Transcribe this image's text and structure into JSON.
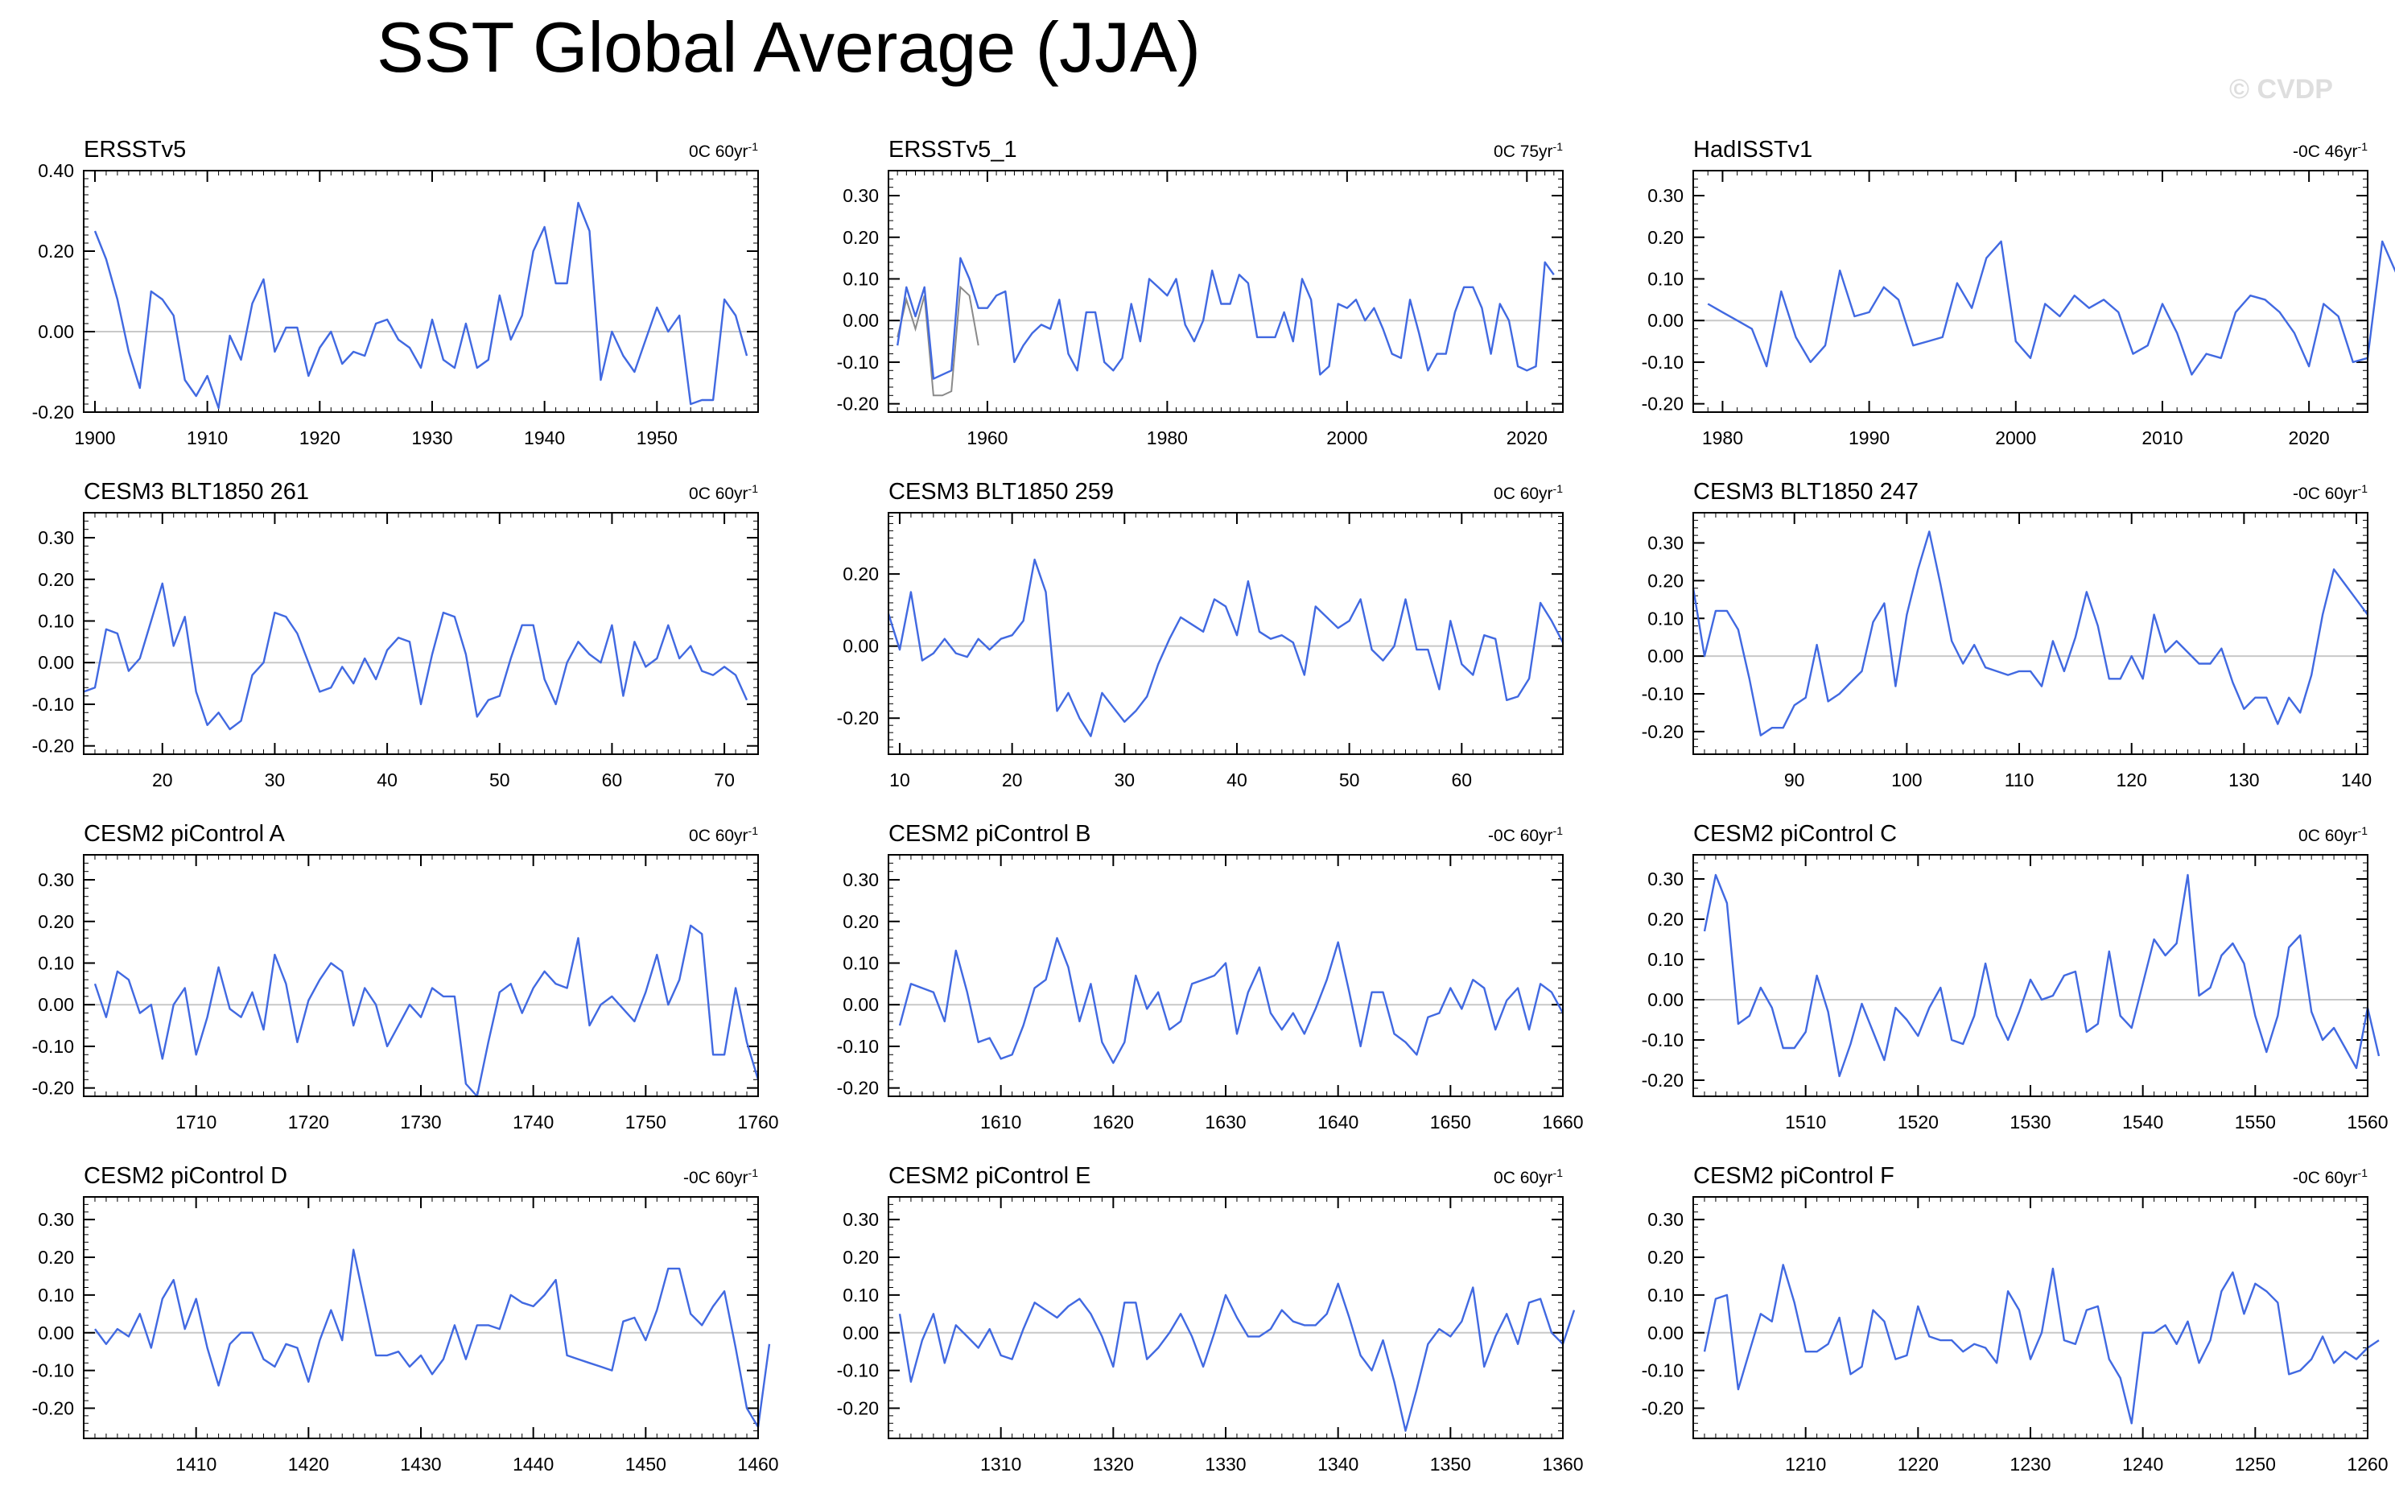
{
  "title": "SST Global Average (JJA)",
  "watermark": "© CVDP",
  "colors": {
    "line": "#4169e1",
    "obs_unsmoothed": "#8a8a8a",
    "zero_line": "#c8c8c8",
    "axis": "#000000"
  },
  "chart_data": [
    {
      "type": "line",
      "title": "ERSSTv5",
      "trend": "0C 60yr",
      "trend_unit": "-1",
      "x_start": 1900,
      "xlim": [
        1899,
        1959
      ],
      "ylim": [
        -0.2,
        0.4
      ],
      "xticks": [
        1900,
        1910,
        1920,
        1930,
        1940,
        1950
      ],
      "yticks": [
        "-0.20",
        "0.00",
        "0.20",
        "0.40"
      ],
      "values": [
        0.25,
        0.18,
        0.08,
        -0.05,
        -0.14,
        0.1,
        0.08,
        0.04,
        -0.12,
        -0.16,
        -0.11,
        -0.19,
        -0.01,
        -0.07,
        0.07,
        0.13,
        -0.05,
        0.01,
        0.01,
        -0.11,
        -0.04,
        0.0,
        -0.08,
        -0.05,
        -0.06,
        0.02,
        0.03,
        -0.02,
        -0.04,
        -0.09,
        0.03,
        -0.07,
        -0.09,
        0.02,
        -0.09,
        -0.07,
        0.09,
        -0.02,
        0.04,
        0.2,
        0.26,
        0.12,
        0.12,
        0.32,
        0.25,
        -0.12,
        0.0,
        -0.06,
        -0.1,
        -0.02,
        0.06,
        0.0,
        0.04,
        -0.18,
        -0.17,
        -0.17,
        0.08,
        0.04,
        -0.06
      ]
    },
    {
      "type": "line",
      "title": "ERSSTv5_1",
      "trend": "0C 75yr",
      "trend_unit": "-1",
      "x_start": 1950,
      "xlim": [
        1949,
        2024
      ],
      "ylim": [
        -0.22,
        0.36
      ],
      "xticks": [
        1960,
        1980,
        2000,
        2020
      ],
      "yticks": [
        "-0.20",
        "-0.10",
        "0.00",
        "0.10",
        "0.20",
        "0.30"
      ],
      "values": [
        -0.06,
        0.08,
        0.01,
        0.08,
        -0.14,
        -0.13,
        -0.12,
        0.15,
        0.1,
        0.03,
        0.03,
        0.06,
        0.07,
        -0.1,
        -0.06,
        -0.03,
        -0.01,
        -0.02,
        0.05,
        -0.08,
        -0.12,
        0.02,
        0.02,
        -0.1,
        -0.12,
        -0.09,
        0.04,
        -0.05,
        0.1,
        0.08,
        0.06,
        0.1,
        -0.01,
        -0.05,
        0.0,
        0.12,
        0.04,
        0.04,
        0.11,
        0.09,
        -0.04,
        -0.04,
        -0.04,
        0.02,
        -0.05,
        0.1,
        0.05,
        -0.13,
        -0.11,
        0.04,
        0.03,
        0.05,
        0.0,
        0.03,
        -0.02,
        -0.08,
        -0.09,
        0.05,
        -0.03,
        -0.12,
        -0.08,
        -0.08,
        0.02,
        0.08,
        0.08,
        0.03,
        -0.08,
        0.04,
        0.0,
        -0.11,
        -0.12,
        -0.11,
        0.14,
        0.11
      ],
      "unsmoothed": [
        -0.04,
        0.05,
        -0.02,
        0.06,
        -0.18,
        -0.18,
        -0.17,
        0.08,
        0.06,
        -0.06
      ]
    },
    {
      "type": "line",
      "title": "HadISSTv1",
      "trend": "-0C 46yr",
      "trend_unit": "-1",
      "x_start": 1979,
      "xlim": [
        1978,
        2024
      ],
      "ylim": [
        -0.22,
        0.36
      ],
      "xticks": [
        1980,
        1990,
        2000,
        2010,
        2020
      ],
      "yticks": [
        "-0.20",
        "-0.10",
        "0.00",
        "0.10",
        "0.20",
        "0.30"
      ],
      "values": [
        0.04,
        0.02,
        0.0,
        -0.02,
        -0.11,
        0.07,
        -0.04,
        -0.1,
        -0.06,
        0.12,
        0.01,
        0.02,
        0.08,
        0.05,
        -0.06,
        -0.05,
        -0.04,
        0.09,
        0.03,
        0.15,
        0.19,
        -0.05,
        -0.09,
        0.04,
        0.01,
        0.06,
        0.03,
        0.05,
        0.02,
        -0.08,
        -0.06,
        0.04,
        -0.03,
        -0.13,
        -0.08,
        -0.09,
        0.02,
        0.06,
        0.05,
        0.02,
        -0.03,
        -0.11,
        0.04,
        0.01,
        -0.1,
        -0.09,
        0.19,
        0.11
      ]
    },
    {
      "type": "line",
      "title": "CESM3 BLT1850 261",
      "trend": "0C 60yr",
      "trend_unit": "-1",
      "x_start": 13,
      "xlim": [
        13,
        73
      ],
      "ylim": [
        -0.22,
        0.36
      ],
      "xticks": [
        20,
        30,
        40,
        50,
        60,
        70
      ],
      "yticks": [
        "-0.20",
        "-0.10",
        "0.00",
        "0.10",
        "0.20",
        "0.30"
      ],
      "values": [
        -0.07,
        -0.06,
        0.08,
        0.07,
        -0.02,
        0.01,
        0.1,
        0.19,
        0.04,
        0.11,
        -0.07,
        -0.15,
        -0.12,
        -0.16,
        -0.14,
        -0.03,
        0.0,
        0.12,
        0.11,
        0.07,
        0.0,
        -0.07,
        -0.06,
        -0.01,
        -0.05,
        0.01,
        -0.04,
        0.03,
        0.06,
        0.05,
        -0.1,
        0.02,
        0.12,
        0.11,
        0.02,
        -0.13,
        -0.09,
        -0.08,
        0.01,
        0.09,
        0.09,
        -0.04,
        -0.1,
        0.0,
        0.05,
        0.02,
        0.0,
        0.09,
        -0.08,
        0.05,
        -0.01,
        0.01,
        0.09,
        0.01,
        0.04,
        -0.02,
        -0.03,
        -0.01,
        -0.03,
        -0.09
      ]
    },
    {
      "type": "line",
      "title": "CESM3 BLT1850 259",
      "trend": "0C 60yr",
      "trend_unit": "-1",
      "x_start": 9,
      "xlim": [
        9,
        69
      ],
      "ylim": [
        -0.3,
        0.37
      ],
      "xticks": [
        10,
        20,
        30,
        40,
        50,
        60
      ],
      "yticks": [
        "-0.20",
        "0.00",
        "0.20"
      ],
      "values": [
        0.09,
        -0.01,
        0.15,
        -0.04,
        -0.02,
        0.02,
        -0.02,
        -0.03,
        0.02,
        -0.01,
        0.02,
        0.03,
        0.07,
        0.24,
        0.15,
        -0.18,
        -0.13,
        -0.2,
        -0.25,
        -0.13,
        -0.17,
        -0.21,
        -0.18,
        -0.14,
        -0.05,
        0.02,
        0.08,
        0.06,
        0.04,
        0.13,
        0.11,
        0.03,
        0.18,
        0.04,
        0.02,
        0.03,
        0.01,
        -0.08,
        0.11,
        0.08,
        0.05,
        0.07,
        0.13,
        -0.01,
        -0.04,
        0.0,
        0.13,
        -0.01,
        -0.01,
        -0.12,
        0.07,
        -0.05,
        -0.08,
        0.03,
        0.02,
        -0.15,
        -0.14,
        -0.09,
        0.12,
        0.07,
        0.01
      ]
    },
    {
      "type": "line",
      "title": "CESM3 BLT1850 247",
      "trend": "-0C 60yr",
      "trend_unit": "-1",
      "x_start": 81,
      "xlim": [
        81,
        141
      ],
      "ylim": [
        -0.26,
        0.38
      ],
      "xticks": [
        90,
        100,
        110,
        120,
        130,
        140
      ],
      "yticks": [
        "-0.20",
        "-0.10",
        "0.00",
        "0.10",
        "0.20",
        "0.30"
      ],
      "values": [
        0.18,
        0.0,
        0.12,
        0.12,
        0.07,
        -0.06,
        -0.21,
        -0.19,
        -0.19,
        -0.13,
        -0.11,
        0.03,
        -0.12,
        -0.1,
        -0.07,
        -0.04,
        0.09,
        0.14,
        -0.08,
        0.11,
        0.23,
        0.33,
        0.19,
        0.04,
        -0.02,
        0.03,
        -0.03,
        -0.04,
        -0.05,
        -0.04,
        -0.04,
        -0.08,
        0.04,
        -0.04,
        0.05,
        0.17,
        0.08,
        -0.06,
        -0.06,
        0.0,
        -0.06,
        0.11,
        0.01,
        0.04,
        0.01,
        -0.02,
        -0.02,
        0.02,
        -0.07,
        -0.14,
        -0.11,
        -0.11,
        -0.18,
        -0.11,
        -0.15,
        -0.05,
        0.11,
        0.23,
        0.19,
        0.15,
        0.11
      ]
    },
    {
      "type": "line",
      "title": "CESM2 piControl A",
      "trend": "0C 60yr",
      "trend_unit": "-1",
      "x_start": 1701,
      "xlim": [
        1700,
        1760
      ],
      "ylim": [
        -0.22,
        0.36
      ],
      "xticks": [
        1710,
        1720,
        1730,
        1740,
        1750,
        1760
      ],
      "yticks": [
        "-0.20",
        "-0.10",
        "0.00",
        "0.10",
        "0.20",
        "0.30"
      ],
      "values": [
        0.05,
        -0.03,
        0.08,
        0.06,
        -0.02,
        0.0,
        -0.13,
        0.0,
        0.04,
        -0.12,
        -0.03,
        0.09,
        -0.01,
        -0.03,
        0.03,
        -0.06,
        0.12,
        0.05,
        -0.09,
        0.01,
        0.06,
        0.1,
        0.08,
        -0.05,
        0.04,
        0.0,
        -0.1,
        -0.05,
        0.0,
        -0.03,
        0.04,
        0.02,
        0.02,
        -0.19,
        -0.22,
        -0.09,
        0.03,
        0.05,
        -0.02,
        0.04,
        0.08,
        0.05,
        0.04,
        0.16,
        -0.05,
        0.0,
        0.02,
        -0.01,
        -0.04,
        0.03,
        0.12,
        0.0,
        0.06,
        0.19,
        0.17,
        -0.12,
        -0.12,
        0.04,
        -0.09,
        -0.18
      ]
    },
    {
      "type": "line",
      "title": "CESM2 piControl B",
      "trend": "-0C 60yr",
      "trend_unit": "-1",
      "x_start": 1601,
      "xlim": [
        1600,
        1660
      ],
      "ylim": [
        -0.22,
        0.36
      ],
      "xticks": [
        1610,
        1620,
        1630,
        1640,
        1650,
        1660
      ],
      "yticks": [
        "-0.20",
        "-0.10",
        "0.00",
        "0.10",
        "0.20",
        "0.30"
      ],
      "values": [
        -0.05,
        0.05,
        0.04,
        0.03,
        -0.04,
        0.13,
        0.03,
        -0.09,
        -0.08,
        -0.13,
        -0.12,
        -0.05,
        0.04,
        0.06,
        0.16,
        0.09,
        -0.04,
        0.05,
        -0.09,
        -0.14,
        -0.09,
        0.07,
        -0.01,
        0.03,
        -0.06,
        -0.04,
        0.05,
        0.06,
        0.07,
        0.1,
        -0.07,
        0.03,
        0.09,
        -0.02,
        -0.06,
        -0.02,
        -0.07,
        -0.01,
        0.06,
        0.15,
        0.03,
        -0.1,
        0.03,
        0.03,
        -0.07,
        -0.09,
        -0.12,
        -0.03,
        -0.02,
        0.04,
        -0.01,
        0.06,
        0.04,
        -0.06,
        0.01,
        0.04,
        -0.06,
        0.05,
        0.03,
        -0.02
      ]
    },
    {
      "type": "line",
      "title": "CESM2 piControl C",
      "trend": "0C 60yr",
      "trend_unit": "-1",
      "x_start": 1501,
      "xlim": [
        1500,
        1560
      ],
      "ylim": [
        -0.24,
        0.36
      ],
      "xticks": [
        1510,
        1520,
        1530,
        1540,
        1550,
        1560
      ],
      "yticks": [
        "-0.20",
        "-0.10",
        "0.00",
        "0.10",
        "0.20",
        "0.30"
      ],
      "values": [
        0.17,
        0.31,
        0.24,
        -0.06,
        -0.04,
        0.03,
        -0.02,
        -0.12,
        -0.12,
        -0.08,
        0.06,
        -0.03,
        -0.19,
        -0.11,
        -0.01,
        -0.08,
        -0.15,
        -0.02,
        -0.05,
        -0.09,
        -0.02,
        0.03,
        -0.1,
        -0.11,
        -0.04,
        0.09,
        -0.04,
        -0.1,
        -0.03,
        0.05,
        0.0,
        0.01,
        0.06,
        0.07,
        -0.08,
        -0.06,
        0.12,
        -0.04,
        -0.07,
        0.04,
        0.15,
        0.11,
        0.14,
        0.31,
        0.01,
        0.03,
        0.11,
        0.14,
        0.09,
        -0.04,
        -0.13,
        -0.04,
        0.13,
        0.16,
        -0.03,
        -0.1,
        -0.07,
        -0.12,
        -0.17,
        -0.02,
        -0.14
      ]
    },
    {
      "type": "line",
      "title": "CESM2 piControl D",
      "trend": "-0C 60yr",
      "trend_unit": "-1",
      "x_start": 1401,
      "xlim": [
        1400,
        1460
      ],
      "ylim": [
        -0.28,
        0.36
      ],
      "xticks": [
        1410,
        1420,
        1430,
        1440,
        1450,
        1460
      ],
      "yticks": [
        "-0.20",
        "-0.10",
        "0.00",
        "0.10",
        "0.20",
        "0.30"
      ],
      "values": [
        0.01,
        -0.03,
        0.01,
        -0.01,
        0.05,
        -0.04,
        0.09,
        0.14,
        0.01,
        0.09,
        -0.04,
        -0.14,
        -0.03,
        0.0,
        0.0,
        -0.07,
        -0.09,
        -0.03,
        -0.04,
        -0.13,
        -0.02,
        0.06,
        -0.02,
        0.22,
        0.08,
        -0.06,
        -0.06,
        -0.05,
        -0.09,
        -0.06,
        -0.11,
        -0.07,
        0.02,
        -0.07,
        0.02,
        0.02,
        0.01,
        0.1,
        0.08,
        0.07,
        0.1,
        0.14,
        -0.06,
        -0.07,
        -0.08,
        -0.09,
        -0.1,
        0.03,
        0.04,
        -0.02,
        0.06,
        0.17,
        0.17,
        0.05,
        0.02,
        0.07,
        0.11,
        -0.04,
        -0.2,
        -0.25,
        -0.03
      ]
    },
    {
      "type": "line",
      "title": "CESM2 piControl E",
      "trend": "0C 60yr",
      "trend_unit": "-1",
      "x_start": 1301,
      "xlim": [
        1300,
        1360
      ],
      "ylim": [
        -0.28,
        0.36
      ],
      "xticks": [
        1310,
        1320,
        1330,
        1340,
        1350,
        1360
      ],
      "yticks": [
        "-0.20",
        "-0.10",
        "0.00",
        "0.10",
        "0.20",
        "0.30"
      ],
      "values": [
        0.05,
        -0.13,
        -0.02,
        0.05,
        -0.08,
        0.02,
        -0.01,
        -0.04,
        0.01,
        -0.06,
        -0.07,
        0.01,
        0.08,
        0.06,
        0.04,
        0.07,
        0.09,
        0.05,
        -0.01,
        -0.09,
        0.08,
        0.08,
        -0.07,
        -0.04,
        0.0,
        0.05,
        -0.01,
        -0.09,
        0.0,
        0.1,
        0.04,
        -0.01,
        -0.01,
        0.01,
        0.06,
        0.03,
        0.02,
        0.02,
        0.05,
        0.13,
        0.04,
        -0.06,
        -0.1,
        -0.02,
        -0.13,
        -0.26,
        -0.15,
        -0.03,
        0.01,
        -0.01,
        0.03,
        0.12,
        -0.09,
        -0.01,
        0.05,
        -0.03,
        0.08,
        0.09,
        0.0,
        -0.03,
        0.06
      ]
    },
    {
      "type": "line",
      "title": "CESM2 piControl F",
      "trend": "-0C 60yr",
      "trend_unit": "-1",
      "x_start": 1201,
      "xlim": [
        1200,
        1260
      ],
      "ylim": [
        -0.28,
        0.36
      ],
      "xticks": [
        1210,
        1220,
        1230,
        1240,
        1250,
        1260
      ],
      "yticks": [
        "-0.20",
        "-0.10",
        "0.00",
        "0.10",
        "0.20",
        "0.30"
      ],
      "values": [
        -0.05,
        0.09,
        0.1,
        -0.15,
        -0.05,
        0.05,
        0.03,
        0.18,
        0.08,
        -0.05,
        -0.05,
        -0.03,
        0.04,
        -0.11,
        -0.09,
        0.06,
        0.03,
        -0.07,
        -0.06,
        0.07,
        -0.01,
        -0.02,
        -0.02,
        -0.05,
        -0.03,
        -0.04,
        -0.08,
        0.11,
        0.06,
        -0.07,
        0.0,
        0.17,
        -0.02,
        -0.03,
        0.06,
        0.07,
        -0.07,
        -0.12,
        -0.24,
        0.0,
        0.0,
        0.02,
        -0.03,
        0.03,
        -0.08,
        -0.02,
        0.11,
        0.16,
        0.05,
        0.13,
        0.11,
        0.08,
        -0.11,
        -0.1,
        -0.07,
        -0.01,
        -0.08,
        -0.05,
        -0.07,
        -0.04,
        -0.02
      ]
    }
  ]
}
